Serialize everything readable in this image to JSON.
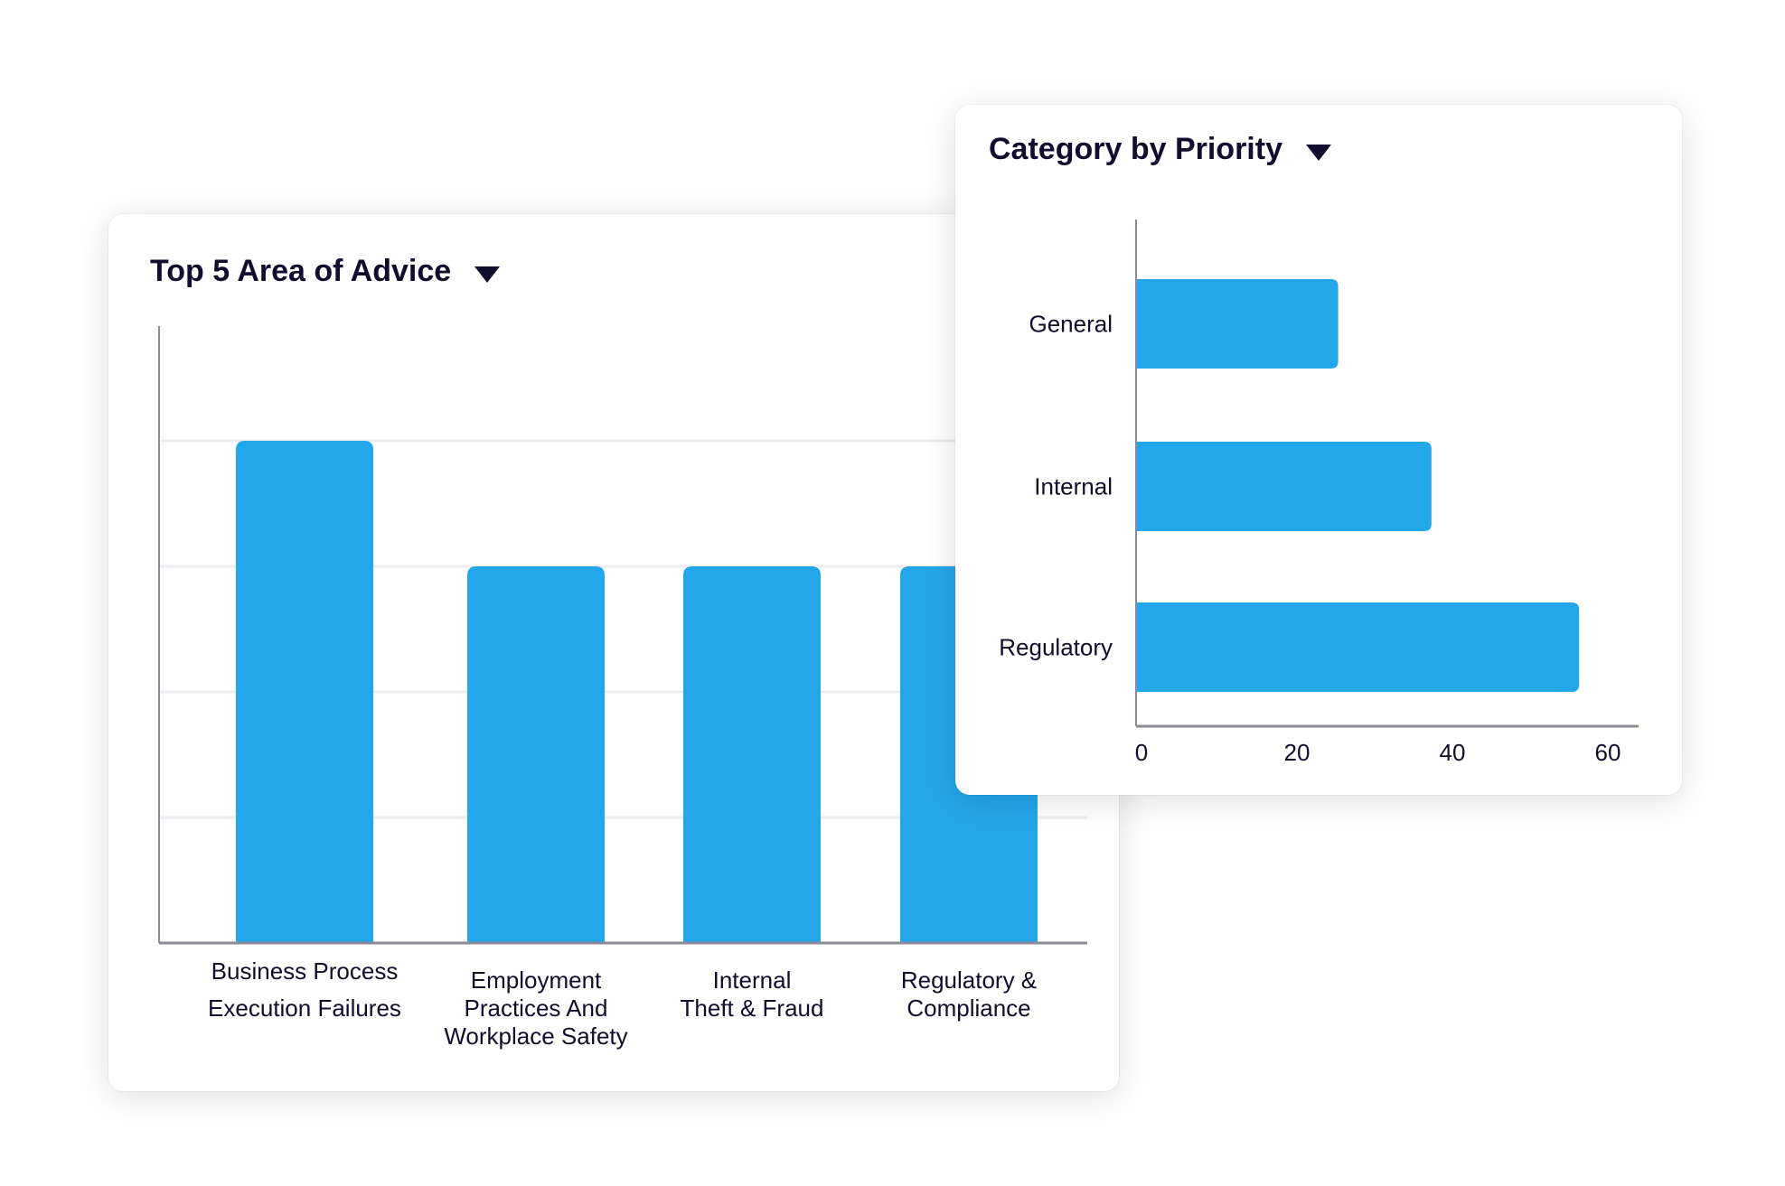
{
  "chart_data": [
    {
      "type": "bar",
      "orientation": "vertical",
      "title": "Top 5 Area of Advice",
      "categories": [
        [
          "Business Process",
          "Execution Failures"
        ],
        [
          "Employment",
          "Practices And",
          "Workplace Safety"
        ],
        [
          "Internal",
          "Theft & Fraud"
        ],
        [
          "Regulatory &",
          "Compliance"
        ]
      ],
      "values": [
        4,
        3,
        3,
        3
      ],
      "ylim": [
        0,
        5
      ],
      "grid": true,
      "xlabel": "",
      "ylabel": ""
    },
    {
      "type": "bar",
      "orientation": "horizontal",
      "title": "Category by Priority",
      "categories": [
        "General",
        "Internal",
        "Regulatory"
      ],
      "values": [
        26,
        38,
        57
      ],
      "xlim": [
        0,
        64
      ],
      "xticks": [
        "0",
        "20",
        "40",
        "60"
      ],
      "grid": false,
      "xlabel": "",
      "ylabel": ""
    }
  ],
  "colors": {
    "bar": "#24a6eb",
    "text": "#100d2e",
    "axis": "#8a8a99",
    "grid": "#ececf0"
  },
  "icons": {
    "dropdown": "caret-down-icon"
  }
}
